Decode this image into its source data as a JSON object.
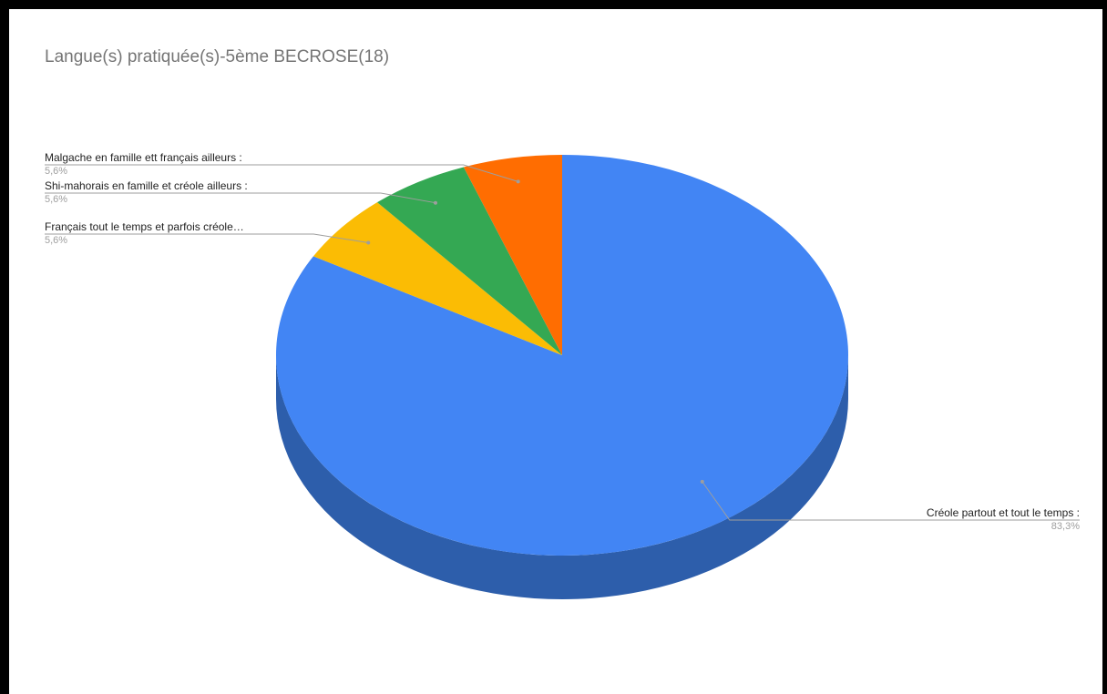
{
  "chart_data": {
    "type": "pie",
    "style": "3d",
    "title": "Langue(s) pratiquée(s)-5ème BECROSE(18)",
    "slices": [
      {
        "label": "Créole partout et tout le temps :",
        "value": 83.3,
        "display": "83,3%",
        "color": "#4285f4",
        "side_color": "#2d5eab"
      },
      {
        "label": "Français tout le temps et parfois créole…",
        "value": 5.6,
        "display": "5,6%",
        "color": "#fbbc04",
        "side_color": "#b08403"
      },
      {
        "label": "Shi-mahorais en famille et créole ailleurs :",
        "value": 5.6,
        "display": "5,6%",
        "color": "#34a853",
        "side_color": "#24763a"
      },
      {
        "label": "Malgache en famille ett français ailleurs :",
        "value": 5.6,
        "display": "5,6%",
        "color": "#ff6d01",
        "side_color": "#b34c01"
      }
    ],
    "legend": "labels"
  }
}
